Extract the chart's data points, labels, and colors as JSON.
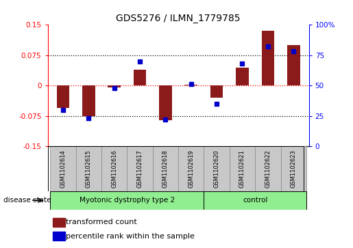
{
  "title": "GDS5276 / ILMN_1779785",
  "samples": [
    "GSM1102614",
    "GSM1102615",
    "GSM1102616",
    "GSM1102617",
    "GSM1102618",
    "GSM1102619",
    "GSM1102620",
    "GSM1102621",
    "GSM1102622",
    "GSM1102623"
  ],
  "red_bars": [
    -0.055,
    -0.075,
    -0.005,
    0.04,
    -0.085,
    0.002,
    -0.03,
    0.045,
    0.135,
    0.1
  ],
  "blue_dots": [
    30,
    23,
    48,
    70,
    22,
    51,
    35,
    68,
    82,
    78
  ],
  "ylim_left": [
    -0.15,
    0.15
  ],
  "ylim_right": [
    0,
    100
  ],
  "yticks_left": [
    -0.15,
    -0.075,
    0,
    0.075,
    0.15
  ],
  "yticks_right": [
    0,
    25,
    50,
    75,
    100
  ],
  "ytick_labels_left": [
    "-0.15",
    "-0.075",
    "0",
    "0.075",
    "0.15"
  ],
  "ytick_labels_right": [
    "0",
    "25",
    "50",
    "75",
    "100%"
  ],
  "hlines": [
    0.075,
    0.0,
    -0.075
  ],
  "red_color": "#8B1A1A",
  "blue_color": "#0000CD",
  "bar_width": 0.5,
  "background_color": "#FFFFFF",
  "plot_bg": "#FFFFFF",
  "label_gray": "#C8C8C8",
  "green_color": "#90EE90",
  "disease_state_label": "disease state",
  "group1_label": "Myotonic dystrophy type 2",
  "group2_label": "control",
  "legend1": "transformed count",
  "legend2": "percentile rank within the sample"
}
